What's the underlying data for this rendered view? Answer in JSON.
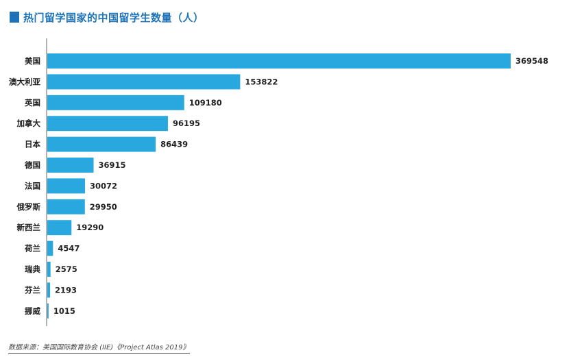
{
  "header": {
    "title": "热门留学国家的中国留学生数量（人）"
  },
  "footer": {
    "source": "数据来源：美国国际教育协会 (IIE)《Project Atlas 2019》"
  },
  "colors": {
    "title": "#1e73b8",
    "bar": "#29a8e0",
    "axis": "#999999",
    "label": "#222222"
  },
  "chart_data": {
    "type": "bar",
    "orientation": "horizontal",
    "categories": [
      "美国",
      "澳大利亚",
      "英国",
      "加拿大",
      "日本",
      "德国",
      "法国",
      "俄罗斯",
      "新西兰",
      "荷兰",
      "瑞典",
      "芬兰",
      "挪威"
    ],
    "values": [
      369548,
      153822,
      109180,
      96195,
      86439,
      36915,
      30072,
      29950,
      19290,
      4547,
      2575,
      2193,
      1015
    ],
    "value_labels": [
      "369548",
      "153822",
      "109180",
      "96195",
      "86439",
      "36915",
      "30072",
      "29950",
      "19290",
      "4547",
      "2575",
      "2193",
      "1015"
    ]
  }
}
